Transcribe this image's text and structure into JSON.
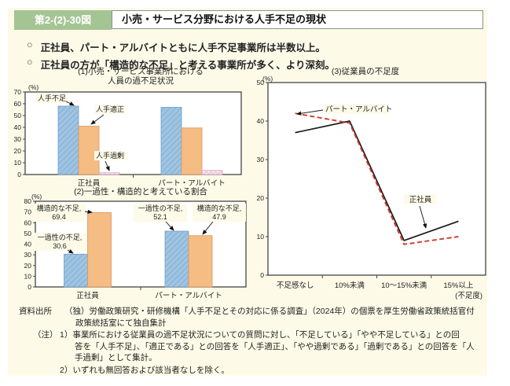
{
  "figure_label": "第2-(2)-30図",
  "figure_title": "小売・サービス分野における人手不足の現状",
  "bullet_marker": "○",
  "bullets": [
    "正社員、パート・アルバイトともに人手不足事業所は半数以上。",
    "正社員の方が「構造的な不足」と考える事業所が多く、より深刻。"
  ],
  "colors": {
    "badge_green": "#a5c494",
    "panel_bg": "#fdfbe8",
    "bar_blue": "#9fc4e2",
    "bar_blue_hatch": "#7ca9cd",
    "bar_blue_stroke": "#6f9cc4",
    "bar_orange": "#f5bc84",
    "bar_orange_stroke": "#d9975c",
    "bar_pink": "#f3cce0",
    "bar_pink_stroke": "#d8a8c8",
    "line_black": "#1a1a1a",
    "line_red": "#d23b2a",
    "axis": "#444444"
  },
  "chart_data": [
    {
      "type": "bar",
      "title_lines": [
        "(1)小売・サービス事業所における",
        "人員の過不足状況"
      ],
      "unit": "(%)",
      "ylim": [
        0,
        70
      ],
      "ytick": 10,
      "grid": false,
      "legend_position": "in-plot-annotations",
      "categories": [
        "正社員",
        "パート・アルバイト"
      ],
      "series": [
        {
          "name": "人手不足",
          "color": "blue",
          "values": [
            58,
            57
          ]
        },
        {
          "name": "人手適正",
          "color": "orange",
          "values": [
            41,
            39.5
          ]
        },
        {
          "name": "人手過剰",
          "color": "pink",
          "values": [
            1.5,
            3.5
          ]
        }
      ]
    },
    {
      "type": "bar",
      "title_lines": [
        "(2)一過性・構造的と考えている割合"
      ],
      "unit": "(%)",
      "ylim": [
        0,
        80
      ],
      "ytick": 10,
      "grid": false,
      "legend_position": "in-plot-annotations",
      "categories": [
        "正社員",
        "パート・アルバイト"
      ],
      "series": [
        {
          "name": "一過性の不足",
          "color": "blue",
          "values": [
            30.6,
            52.1
          ]
        },
        {
          "name": "構造的な不足",
          "color": "orange",
          "values": [
            69.4,
            47.9
          ]
        }
      ],
      "annotation_values": [
        "30.6",
        "52.1",
        "69.4",
        "47.9"
      ]
    },
    {
      "type": "line",
      "title": "(3)従業員の不足度",
      "unit": "(%)",
      "xunit": "(不足度)",
      "ylim": [
        0,
        50
      ],
      "ytick": 10,
      "grid": false,
      "legend_position": "in-plot-annotations",
      "categories": [
        "不足感なし",
        "10%未満",
        "10～15%未満",
        "15%以上"
      ],
      "series": [
        {
          "name": "正社員",
          "style": "solid",
          "values": [
            37,
            40,
            9,
            14
          ]
        },
        {
          "name": "パート・アルバイト",
          "style": "dashed",
          "values": [
            42,
            39.5,
            8,
            10
          ]
        }
      ]
    }
  ],
  "notes": {
    "source_label": "資料出所",
    "source_lines": [
      "（独）労働政策研究・研修機構「人手不足とその対応に係る調査」（2024年）の個票を厚生労働省政策統括官付",
      "政策統括室にて独自集計"
    ],
    "note_label": "（注）",
    "note1_lines": [
      "1）事業所における従業員の過不足状況についての質問に対し、「不足している」「やや不足している」との回",
      "答を「人手不足」、「適正である」との回答を「人手適正」、「やや過剰である」「過剰である」との回答を「人",
      "手過剰」として集計。"
    ],
    "note2": "2）いずれも無回答および該当者なしを除く。"
  }
}
